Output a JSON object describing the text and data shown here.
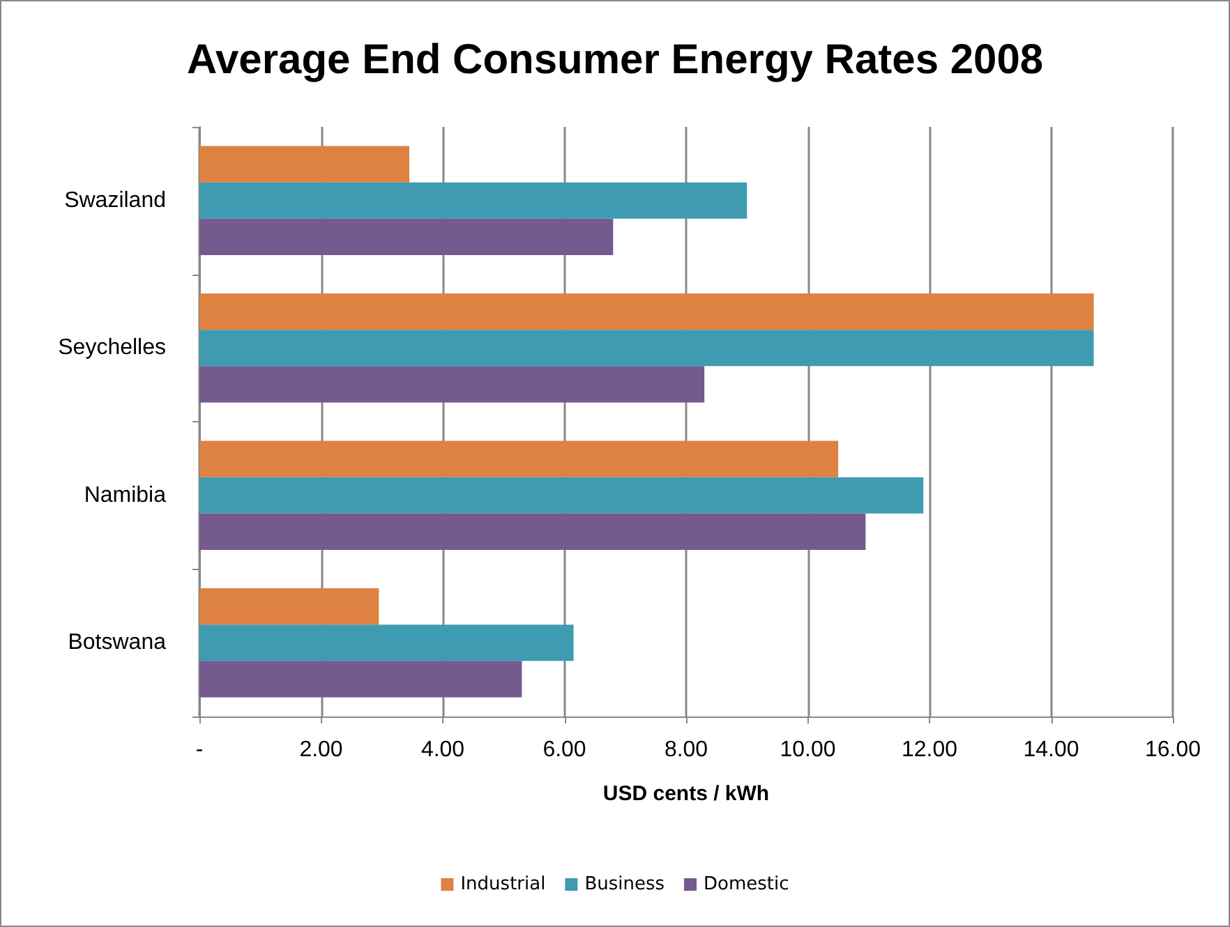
{
  "chart_data": {
    "type": "bar",
    "orientation": "horizontal",
    "title": "Average End Consumer Energy Rates 2008",
    "xlabel": "USD cents / kWh",
    "categories": [
      "Swaziland",
      "Seychelles",
      "Namibia",
      "Botswana"
    ],
    "series": [
      {
        "name": "Industrial",
        "color": "#dd8240",
        "values": [
          3.45,
          14.7,
          10.5,
          2.95
        ]
      },
      {
        "name": "Business",
        "color": "#3f9bb1",
        "values": [
          9.0,
          14.7,
          11.9,
          6.15
        ]
      },
      {
        "name": "Domestic",
        "color": "#745a8f",
        "values": [
          6.8,
          8.3,
          10.95,
          5.3
        ]
      }
    ],
    "xlim": [
      0,
      16
    ],
    "xticks": [
      {
        "value": 0,
        "label": "-"
      },
      {
        "value": 2,
        "label": "2.00"
      },
      {
        "value": 4,
        "label": "4.00"
      },
      {
        "value": 6,
        "label": "6.00"
      },
      {
        "value": 8,
        "label": "8.00"
      },
      {
        "value": 10,
        "label": "10.00"
      },
      {
        "value": 12,
        "label": "12.00"
      },
      {
        "value": 14,
        "label": "14.00"
      },
      {
        "value": 16,
        "label": "16.00"
      }
    ],
    "grid": "x",
    "legend": "bottom"
  }
}
